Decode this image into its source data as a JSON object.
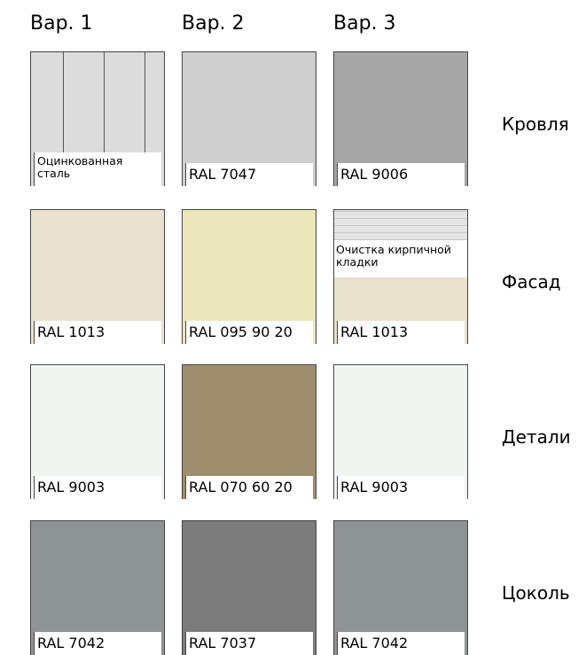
{
  "columns": [
    "Вар. 1",
    "Вар. 2",
    "Вар. 3"
  ],
  "rows": [
    {
      "label": "Кровля",
      "cells": [
        {
          "label": "Оцинкованная сталь",
          "color": "#dcdcdc",
          "stripes": true
        },
        {
          "label": "RAL 7047",
          "color": "#cfcfcf"
        },
        {
          "label": "RAL 9006",
          "color": "#a5a6a5"
        }
      ]
    },
    {
      "label": "Фасад",
      "cells": [
        {
          "label": "RAL 1013",
          "color": "#e9e2d0"
        },
        {
          "label": "RAL 095 90 20",
          "color": "#ebe7bb"
        },
        {
          "label": "RAL 1013",
          "color": "#e9e2cc",
          "note": "Очистка кирпичной кладки"
        }
      ]
    },
    {
      "label": "Детали",
      "cells": [
        {
          "label": "RAL 9003",
          "color": "#f1f5f1"
        },
        {
          "label": "RAL 070 60 20",
          "color": "#9e8e6e"
        },
        {
          "label": "RAL 9003",
          "color": "#f1f5f1"
        }
      ]
    },
    {
      "label": "Цоколь",
      "cells": [
        {
          "label": "RAL 7042",
          "color": "#8e9494"
        },
        {
          "label": "RAL 7037",
          "color": "#7b7c7b"
        },
        {
          "label": "RAL 7042",
          "color": "#8e9494"
        }
      ]
    }
  ]
}
